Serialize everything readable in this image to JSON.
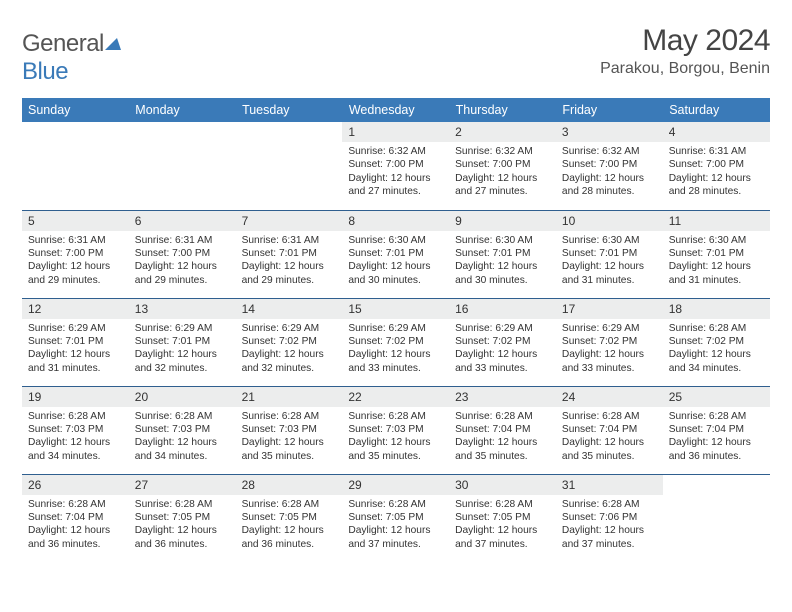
{
  "brand": {
    "part1": "General",
    "part2": "Blue"
  },
  "title": {
    "month_year": "May 2024",
    "location": "Parakou, Borgou, Benin"
  },
  "colors": {
    "header_bg": "#3a7ab8",
    "header_fg": "#ffffff",
    "daynum_bg": "#eceded",
    "row_border": "#2f5f8f",
    "text": "#333333",
    "page_bg": "#ffffff"
  },
  "font_sizes": {
    "title_month": 30,
    "title_loc": 16,
    "logo": 24,
    "weekday_header": 12.5,
    "daynum": 12,
    "body": 10.2
  },
  "weekdays": [
    "Sunday",
    "Monday",
    "Tuesday",
    "Wednesday",
    "Thursday",
    "Friday",
    "Saturday"
  ],
  "weeks": [
    [
      {
        "empty": true
      },
      {
        "empty": true
      },
      {
        "empty": true
      },
      {
        "num": "1",
        "sunrise": "6:32 AM",
        "sunset": "7:00 PM",
        "day_h": "12",
        "day_m": "27"
      },
      {
        "num": "2",
        "sunrise": "6:32 AM",
        "sunset": "7:00 PM",
        "day_h": "12",
        "day_m": "27"
      },
      {
        "num": "3",
        "sunrise": "6:32 AM",
        "sunset": "7:00 PM",
        "day_h": "12",
        "day_m": "28"
      },
      {
        "num": "4",
        "sunrise": "6:31 AM",
        "sunset": "7:00 PM",
        "day_h": "12",
        "day_m": "28"
      }
    ],
    [
      {
        "num": "5",
        "sunrise": "6:31 AM",
        "sunset": "7:00 PM",
        "day_h": "12",
        "day_m": "29"
      },
      {
        "num": "6",
        "sunrise": "6:31 AM",
        "sunset": "7:00 PM",
        "day_h": "12",
        "day_m": "29"
      },
      {
        "num": "7",
        "sunrise": "6:31 AM",
        "sunset": "7:01 PM",
        "day_h": "12",
        "day_m": "29"
      },
      {
        "num": "8",
        "sunrise": "6:30 AM",
        "sunset": "7:01 PM",
        "day_h": "12",
        "day_m": "30"
      },
      {
        "num": "9",
        "sunrise": "6:30 AM",
        "sunset": "7:01 PM",
        "day_h": "12",
        "day_m": "30"
      },
      {
        "num": "10",
        "sunrise": "6:30 AM",
        "sunset": "7:01 PM",
        "day_h": "12",
        "day_m": "31"
      },
      {
        "num": "11",
        "sunrise": "6:30 AM",
        "sunset": "7:01 PM",
        "day_h": "12",
        "day_m": "31"
      }
    ],
    [
      {
        "num": "12",
        "sunrise": "6:29 AM",
        "sunset": "7:01 PM",
        "day_h": "12",
        "day_m": "31"
      },
      {
        "num": "13",
        "sunrise": "6:29 AM",
        "sunset": "7:01 PM",
        "day_h": "12",
        "day_m": "32"
      },
      {
        "num": "14",
        "sunrise": "6:29 AM",
        "sunset": "7:02 PM",
        "day_h": "12",
        "day_m": "32"
      },
      {
        "num": "15",
        "sunrise": "6:29 AM",
        "sunset": "7:02 PM",
        "day_h": "12",
        "day_m": "33"
      },
      {
        "num": "16",
        "sunrise": "6:29 AM",
        "sunset": "7:02 PM",
        "day_h": "12",
        "day_m": "33"
      },
      {
        "num": "17",
        "sunrise": "6:29 AM",
        "sunset": "7:02 PM",
        "day_h": "12",
        "day_m": "33"
      },
      {
        "num": "18",
        "sunrise": "6:28 AM",
        "sunset": "7:02 PM",
        "day_h": "12",
        "day_m": "34"
      }
    ],
    [
      {
        "num": "19",
        "sunrise": "6:28 AM",
        "sunset": "7:03 PM",
        "day_h": "12",
        "day_m": "34"
      },
      {
        "num": "20",
        "sunrise": "6:28 AM",
        "sunset": "7:03 PM",
        "day_h": "12",
        "day_m": "34"
      },
      {
        "num": "21",
        "sunrise": "6:28 AM",
        "sunset": "7:03 PM",
        "day_h": "12",
        "day_m": "35"
      },
      {
        "num": "22",
        "sunrise": "6:28 AM",
        "sunset": "7:03 PM",
        "day_h": "12",
        "day_m": "35"
      },
      {
        "num": "23",
        "sunrise": "6:28 AM",
        "sunset": "7:04 PM",
        "day_h": "12",
        "day_m": "35"
      },
      {
        "num": "24",
        "sunrise": "6:28 AM",
        "sunset": "7:04 PM",
        "day_h": "12",
        "day_m": "35"
      },
      {
        "num": "25",
        "sunrise": "6:28 AM",
        "sunset": "7:04 PM",
        "day_h": "12",
        "day_m": "36"
      }
    ],
    [
      {
        "num": "26",
        "sunrise": "6:28 AM",
        "sunset": "7:04 PM",
        "day_h": "12",
        "day_m": "36"
      },
      {
        "num": "27",
        "sunrise": "6:28 AM",
        "sunset": "7:05 PM",
        "day_h": "12",
        "day_m": "36"
      },
      {
        "num": "28",
        "sunrise": "6:28 AM",
        "sunset": "7:05 PM",
        "day_h": "12",
        "day_m": "36"
      },
      {
        "num": "29",
        "sunrise": "6:28 AM",
        "sunset": "7:05 PM",
        "day_h": "12",
        "day_m": "37"
      },
      {
        "num": "30",
        "sunrise": "6:28 AM",
        "sunset": "7:05 PM",
        "day_h": "12",
        "day_m": "37"
      },
      {
        "num": "31",
        "sunrise": "6:28 AM",
        "sunset": "7:06 PM",
        "day_h": "12",
        "day_m": "37"
      },
      {
        "empty": true
      }
    ]
  ]
}
